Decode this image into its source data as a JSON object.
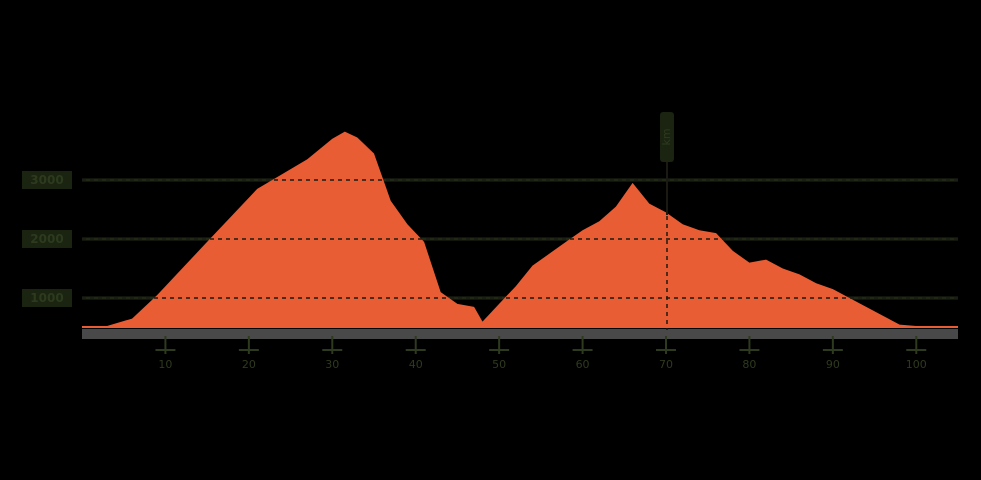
{
  "chart_data": {
    "type": "area",
    "title": "",
    "xlabel": "",
    "ylabel": "",
    "colors": {
      "fill": "#e85d33",
      "background": "#000000",
      "gridline": "#1f2916",
      "label": "#2e3a1e",
      "baseline": "#7a7a7a"
    },
    "y_ticks": [
      {
        "label": "1000",
        "value": 1000
      },
      {
        "label": "2000",
        "value": 2000
      },
      {
        "label": "3000",
        "value": 3000
      }
    ],
    "x_ticks": [
      "10",
      "20",
      "30",
      "40",
      "50",
      "60",
      "70",
      "80",
      "90",
      "100"
    ],
    "grid": true,
    "ylim": [
      0,
      3500
    ],
    "xlim": [
      0,
      105
    ],
    "marker": {
      "x": 70,
      "label": "km"
    },
    "x": [
      0,
      3,
      6,
      9,
      12,
      15,
      18,
      21,
      24,
      27,
      30,
      31.5,
      33,
      35,
      37,
      39,
      41,
      43,
      45,
      47,
      48,
      50,
      52,
      54,
      56,
      58,
      60,
      62,
      64,
      66,
      68,
      70,
      72,
      74,
      76,
      78,
      80,
      82,
      84,
      86,
      88,
      90,
      92,
      94,
      96,
      98,
      100,
      102,
      105
    ],
    "values": [
      80,
      350,
      650,
      1050,
      1500,
      1950,
      2400,
      2850,
      3100,
      3350,
      3700,
      3820,
      3720,
      3450,
      2650,
      2250,
      1950,
      1100,
      900,
      850,
      600,
      900,
      1200,
      1550,
      1750,
      1950,
      2150,
      2300,
      2550,
      2950,
      2600,
      2450,
      2250,
      2150,
      2100,
      1800,
      1600,
      1650,
      1500,
      1400,
      1250,
      1150,
      1000,
      850,
      700,
      550,
      400,
      250,
      100
    ]
  }
}
